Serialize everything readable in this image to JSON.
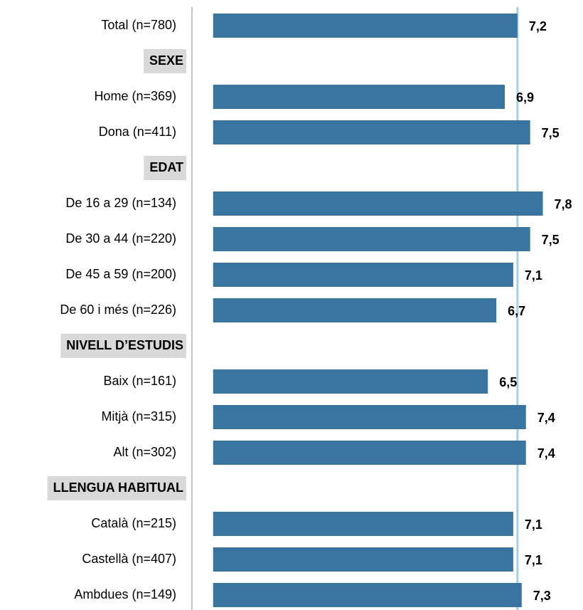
{
  "chart_data": {
    "type": "bar",
    "orientation": "horizontal",
    "categories": [
      "Total (n=780)",
      "SEXE",
      "Home (n=369)",
      "Dona (n=411)",
      "EDAT",
      "De 16 a 29 (n=134)",
      "De 30 a 44 (n=220)",
      "De 45 a 59 (n=200)",
      "De 60 i més (n=226)",
      "NIVELL D’ESTUDIS",
      "Baix (n=161)",
      "Mitjà (n=315)",
      "Alt (n=302)",
      "LLENGUA HABITUAL",
      "Català (n=215)",
      "Castellà (n=407)",
      "Ambdues (n=149)"
    ],
    "values": [
      7.2,
      null,
      6.9,
      7.5,
      null,
      7.8,
      7.5,
      7.1,
      6.7,
      null,
      6.5,
      7.4,
      7.4,
      null,
      7.1,
      7.1,
      7.3
    ],
    "value_labels": [
      "7,2",
      null,
      "6,9",
      "7,5",
      null,
      "7,8",
      "7,5",
      "7,1",
      "6,7",
      null,
      "6,5",
      "7,4",
      "7,4",
      null,
      "7,1",
      "7,1",
      "7,3"
    ],
    "color": "#3a74a1",
    "reference_color": "#a9cfe0",
    "xlim": [
      -0.5,
      8.75
    ]
  }
}
